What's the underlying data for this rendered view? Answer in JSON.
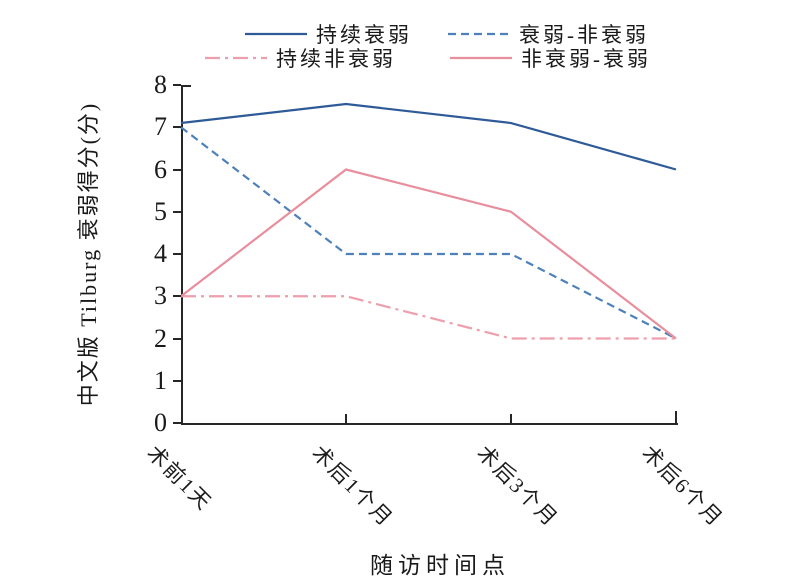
{
  "chart_data": {
    "type": "line",
    "title": "",
    "xlabel": "随访时间点",
    "ylabel": "中文版 Tilburg 衰弱得分(分)",
    "categories": [
      "术前1天",
      "术后1个月",
      "术后3个月",
      "术后6个月"
    ],
    "yticks": [
      0,
      1,
      2,
      3,
      4,
      5,
      6,
      7,
      8
    ],
    "ylim": [
      0,
      8
    ],
    "grid": false,
    "legend_position": "top",
    "series": [
      {
        "name": "持续衰弱",
        "line_style": "solid",
        "color": "#2E5B98",
        "values": [
          7.1,
          7.55,
          7.1,
          6
        ]
      },
      {
        "name": "衰弱-非衰弱",
        "line_style": "dashed",
        "color": "#4E81B9",
        "values": [
          7,
          4,
          4,
          2
        ]
      },
      {
        "name": "持续非衰弱",
        "line_style": "dashdot",
        "color": "#EE9FAD",
        "values": [
          3,
          3,
          2,
          2
        ]
      },
      {
        "name": "非衰弱-衰弱",
        "line_style": "solid",
        "color": "#E88E9C",
        "values": [
          3,
          6,
          5,
          2
        ]
      }
    ],
    "axis_color": "#262626"
  }
}
